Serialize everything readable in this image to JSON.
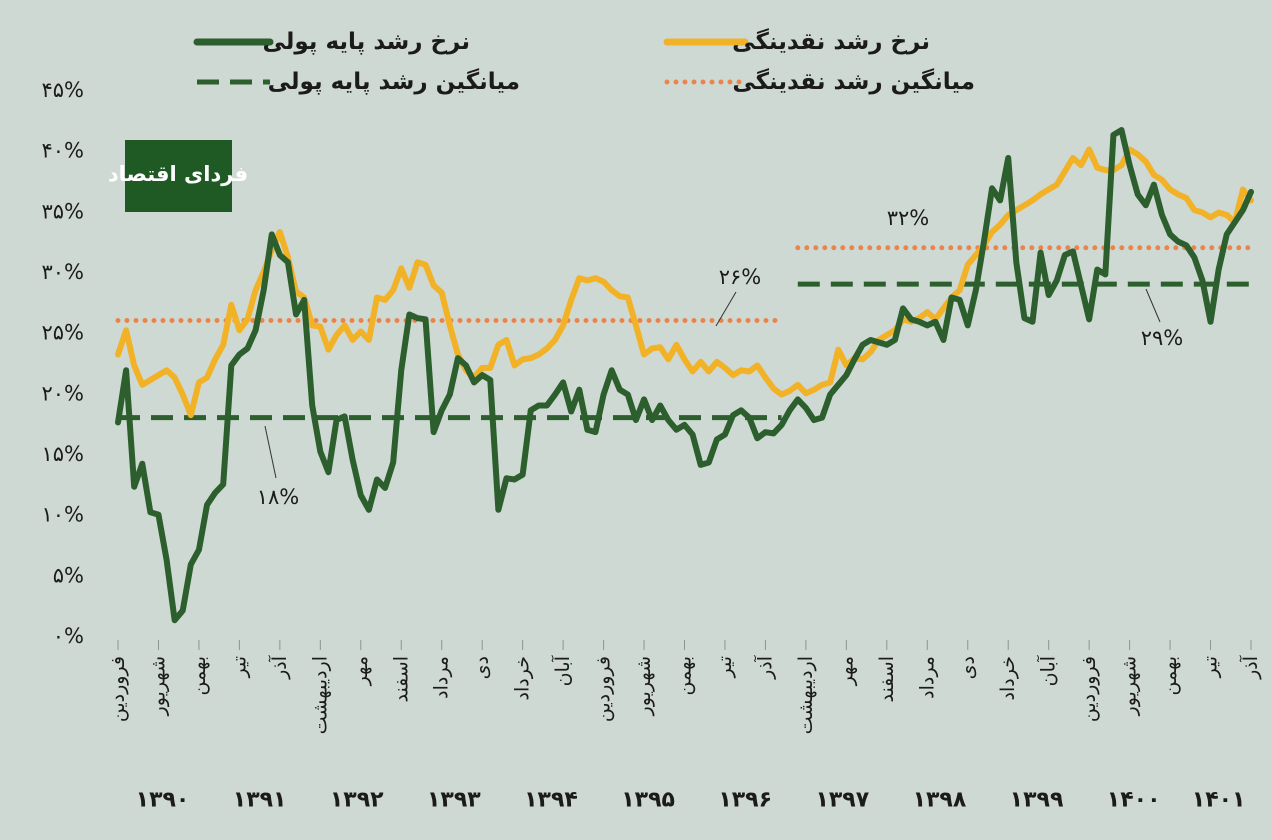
{
  "chart_data": {
    "type": "line",
    "logo": "فردای اقتصاد",
    "ylim": [
      0,
      45
    ],
    "yticks": [
      {
        "value": 0,
        "label": "۰%"
      },
      {
        "value": 5,
        "label": "۵%"
      },
      {
        "value": 10,
        "label": "۱۰%"
      },
      {
        "value": 15,
        "label": "۱۵%"
      },
      {
        "value": 20,
        "label": "۲۰%"
      },
      {
        "value": 25,
        "label": "۲۵%"
      },
      {
        "value": 30,
        "label": "۳۰%"
      },
      {
        "value": 35,
        "label": "۳۵%"
      },
      {
        "value": 40,
        "label": "۴۰%"
      },
      {
        "value": 45,
        "label": "۴۵%"
      }
    ],
    "categories": [
      "فروردین",
      null,
      null,
      null,
      null,
      "شهریور",
      null,
      null,
      null,
      null,
      "بهمن",
      null,
      null,
      null,
      null,
      "تیر",
      null,
      null,
      null,
      null,
      "آذر",
      null,
      null,
      null,
      null,
      "اردیبهشت",
      null,
      null,
      null,
      null,
      "مهر",
      null,
      null,
      null,
      null,
      "اسفند",
      null,
      null,
      null,
      null,
      "مرداد",
      null,
      null,
      null,
      null,
      "دی",
      null,
      null,
      null,
      null,
      "خرداد",
      null,
      null,
      null,
      null,
      "آبان",
      null,
      null,
      null,
      null,
      "فروردین",
      null,
      null,
      null,
      null,
      "شهریور",
      null,
      null,
      null,
      null,
      "بهمن",
      null,
      null,
      null,
      null,
      "تیر",
      null,
      null,
      null,
      null,
      "آذر",
      null,
      null,
      null,
      null,
      "اردیبهشت",
      null,
      null,
      null,
      null,
      "مهر",
      null,
      null,
      null,
      null,
      "اسفند",
      null,
      null,
      null,
      null,
      "مرداد",
      null,
      null,
      null,
      null,
      "دی",
      null,
      null,
      null,
      null,
      "خرداد",
      null,
      null,
      null,
      null,
      "آبان",
      null,
      null,
      null,
      null,
      "فروردین",
      null,
      null,
      null,
      null,
      "شهریور",
      null,
      null,
      null,
      null,
      "بهمن",
      null,
      null,
      null,
      null,
      "تیر",
      null,
      null,
      null,
      null,
      "آذر"
    ],
    "years": [
      "۱۳۹۰",
      "۱۳۹۱",
      "۱۳۹۲",
      "۱۳۹۳",
      "۱۳۹۴",
      "۱۳۹۵",
      "۱۳۹۶",
      "۱۳۹۷",
      "۱۳۹۸",
      "۱۳۹۹",
      "۱۴۰۰",
      "۱۴۰۱"
    ],
    "series": [
      {
        "name": "نرخ رشد پایه پولی",
        "color": "#2c5f2d",
        "style": "solid",
        "values": [
          17.6,
          21.9,
          12.3,
          14.2,
          10.2,
          10,
          6.3,
          1.3,
          2.1,
          5.9,
          7.1,
          10.8,
          11.8,
          12.5,
          22.3,
          23.2,
          23.7,
          25.2,
          28.5,
          33.1,
          31.4,
          30.8,
          26.5,
          27.7,
          19,
          15.2,
          13.5,
          17.8,
          18.1,
          14.5,
          11.6,
          10.4,
          12.9,
          12.2,
          14.3,
          21.9,
          26.5,
          26.2,
          26.1,
          16.8,
          18.6,
          19.9,
          22.9,
          22.3,
          20.9,
          21.5,
          21.1,
          10.4,
          13,
          12.9,
          13.3,
          18.6,
          19,
          19,
          19.9,
          20.9,
          18.5,
          20.3,
          17,
          16.8,
          19.9,
          21.9,
          20.3,
          19.9,
          17.8,
          19.5,
          17.8,
          19,
          17.8,
          17,
          17.4,
          16.6,
          14.1,
          14.3,
          16.2,
          16.6,
          18.2,
          18.6,
          18,
          16.3,
          16.8,
          16.7,
          17.4,
          18.6,
          19.5,
          18.8,
          17.8,
          18,
          19.9,
          20.7,
          21.5,
          22.8,
          24,
          24.4,
          24.2,
          24,
          24.4,
          27,
          26.1,
          25.9,
          25.6,
          25.9,
          24.4,
          27.9,
          27.7,
          25.6,
          28.5,
          32.5,
          36.9,
          35.9,
          39.4,
          30.8,
          26.2,
          25.9,
          31.6,
          28.1,
          29.3,
          31.4,
          31.7,
          28.9,
          26.1,
          30.2,
          29.8,
          41.3,
          41.7,
          38.8,
          36.4,
          35.5,
          37.2,
          34.7,
          33.1,
          32.5,
          32.2,
          31.2,
          29.3,
          25.9,
          30.2,
          33.1,
          34.1,
          35.1,
          36.6
        ]
      },
      {
        "name": "نرخ رشد نقدینگی",
        "color": "#f2b228",
        "style": "solid",
        "values": [
          23.2,
          25.2,
          22.3,
          20.7,
          21.1,
          21.5,
          21.9,
          21.3,
          19.9,
          18.2,
          20.9,
          21.3,
          22.8,
          24,
          27.3,
          25.2,
          26.1,
          28.5,
          30,
          31.8,
          33.3,
          31.2,
          28.4,
          27.9,
          25.6,
          25.5,
          23.6,
          24.8,
          25.6,
          24.4,
          25.1,
          24.4,
          27.9,
          27.7,
          28.5,
          30.3,
          28.7,
          30.8,
          30.6,
          28.9,
          28.3,
          25.6,
          23.2,
          21.9,
          21.3,
          22.1,
          22.1,
          24,
          24.4,
          22.3,
          22.8,
          22.9,
          23.2,
          23.7,
          24.4,
          25.6,
          27.7,
          29.5,
          29.3,
          29.5,
          29.2,
          28.5,
          28,
          27.9,
          25.6,
          23.2,
          23.7,
          23.8,
          22.8,
          24,
          22.8,
          21.8,
          22.6,
          21.8,
          22.6,
          22.1,
          21.5,
          21.9,
          21.8,
          22.3,
          21.3,
          20.4,
          19.9,
          20.2,
          20.7,
          20,
          20.3,
          20.7,
          20.9,
          23.6,
          22.3,
          22.9,
          22.8,
          23.4,
          24.4,
          24.8,
          25.2,
          26.1,
          25.9,
          26.2,
          26.7,
          26.1,
          27,
          27.9,
          28.5,
          30.6,
          31.4,
          32.2,
          33.3,
          33.9,
          34.7,
          35.1,
          35.5,
          35.9,
          36.4,
          36.8,
          37.2,
          38.3,
          39.4,
          38.8,
          40.1,
          38.6,
          38.4,
          38.4,
          38.8,
          40.1,
          39.7,
          39.1,
          38,
          37.6,
          36.8,
          36.4,
          36.1,
          35.1,
          34.9,
          34.5,
          34.9,
          34.7,
          34.1,
          36.8,
          35.9
        ]
      },
      {
        "name": "میانگین رشد پایه پولی",
        "color": "#2c5f2d",
        "style": "dashed",
        "values": [
          18,
          18,
          18,
          18,
          18,
          18,
          18,
          18,
          18,
          18,
          18,
          18,
          18,
          18,
          18,
          18,
          18,
          18,
          18,
          18,
          18,
          18,
          18,
          18,
          18,
          18,
          18,
          18,
          18,
          18,
          18,
          18,
          18,
          18,
          18,
          18,
          18,
          18,
          18,
          18,
          18,
          18,
          18,
          18,
          18,
          18,
          18,
          18,
          18,
          18,
          18,
          18,
          18,
          18,
          18,
          18,
          18,
          18,
          18,
          18,
          18,
          18,
          18,
          18,
          18,
          18,
          18,
          18,
          18,
          18,
          18,
          18,
          18,
          18,
          18,
          18,
          18,
          18,
          18,
          18,
          18,
          18,
          18,
          null,
          29,
          29,
          29,
          29,
          29,
          29,
          29,
          29,
          29,
          29,
          29,
          29,
          29,
          29,
          29,
          29,
          29,
          29,
          29,
          29,
          29,
          29,
          29,
          29,
          29,
          29,
          29,
          29,
          29,
          29,
          29,
          29,
          29,
          29,
          29,
          29,
          29,
          29,
          29,
          29,
          29,
          29,
          29,
          29,
          29,
          29,
          29,
          29,
          29,
          29,
          29,
          29,
          29,
          29,
          29,
          29,
          29
        ]
      },
      {
        "name": "میانگین رشد نقدینگی",
        "color": "#e9844b",
        "style": "dotted",
        "values": [
          26,
          26,
          26,
          26,
          26,
          26,
          26,
          26,
          26,
          26,
          26,
          26,
          26,
          26,
          26,
          26,
          26,
          26,
          26,
          26,
          26,
          26,
          26,
          26,
          26,
          26,
          26,
          26,
          26,
          26,
          26,
          26,
          26,
          26,
          26,
          26,
          26,
          26,
          26,
          26,
          26,
          26,
          26,
          26,
          26,
          26,
          26,
          26,
          26,
          26,
          26,
          26,
          26,
          26,
          26,
          26,
          26,
          26,
          26,
          26,
          26,
          26,
          26,
          26,
          26,
          26,
          26,
          26,
          26,
          26,
          26,
          26,
          26,
          26,
          26,
          26,
          26,
          26,
          26,
          26,
          26,
          26,
          26,
          null,
          32,
          32,
          32,
          32,
          32,
          32,
          32,
          32,
          32,
          32,
          32,
          32,
          32,
          32,
          32,
          32,
          32,
          32,
          32,
          32,
          32,
          32,
          32,
          32,
          32,
          32,
          32,
          32,
          32,
          32,
          32,
          32,
          32,
          32,
          32,
          32,
          32,
          32,
          32,
          32,
          32,
          32,
          32,
          32,
          32,
          32,
          32,
          32,
          32,
          32,
          32,
          32,
          32,
          32,
          32,
          32,
          32
        ]
      }
    ],
    "annotations": [
      {
        "text": "۱۸%"
      },
      {
        "text": "۲۶%"
      },
      {
        "text": "۳۲%"
      },
      {
        "text": "۲۹%"
      }
    ]
  }
}
